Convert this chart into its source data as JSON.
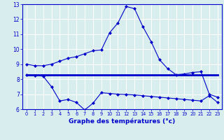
{
  "xlabel": "Graphe des températures (°c)",
  "background_color": "#d8eeee",
  "grid_color": "#b8d8d8",
  "line_color": "#0000cc",
  "xlim": [
    -0.5,
    23.5
  ],
  "ylim": [
    6,
    13
  ],
  "xticks": [
    0,
    1,
    2,
    3,
    4,
    5,
    6,
    7,
    8,
    9,
    10,
    11,
    12,
    13,
    14,
    15,
    16,
    17,
    18,
    19,
    20,
    21,
    22,
    23
  ],
  "yticks": [
    6,
    7,
    8,
    9,
    10,
    11,
    12,
    13
  ],
  "line1_x": [
    0,
    1,
    2,
    3,
    4,
    5,
    6,
    7,
    8,
    9,
    10,
    11,
    12,
    13,
    14,
    15,
    16,
    17,
    18,
    19,
    20,
    21,
    22,
    23
  ],
  "line1_y": [
    9.0,
    8.9,
    8.9,
    9.0,
    9.2,
    9.4,
    9.5,
    9.7,
    9.9,
    9.95,
    11.1,
    11.75,
    12.85,
    12.7,
    11.5,
    10.5,
    9.3,
    8.7,
    8.3,
    8.35,
    8.45,
    8.5,
    7.0,
    6.8
  ],
  "line2_x": [
    0,
    23
  ],
  "line2_y": [
    8.3,
    8.3
  ],
  "line3_x": [
    0,
    1,
    2,
    3,
    4,
    5,
    6,
    7,
    8,
    9,
    10,
    11,
    12,
    13,
    14,
    15,
    16,
    17,
    18,
    19,
    20,
    21,
    22,
    23
  ],
  "line3_y": [
    8.3,
    8.25,
    8.2,
    7.5,
    6.55,
    6.65,
    6.45,
    5.95,
    6.4,
    7.1,
    7.05,
    7.0,
    6.98,
    6.95,
    6.9,
    6.85,
    6.8,
    6.75,
    6.7,
    6.65,
    6.6,
    6.55,
    6.9,
    6.45
  ]
}
